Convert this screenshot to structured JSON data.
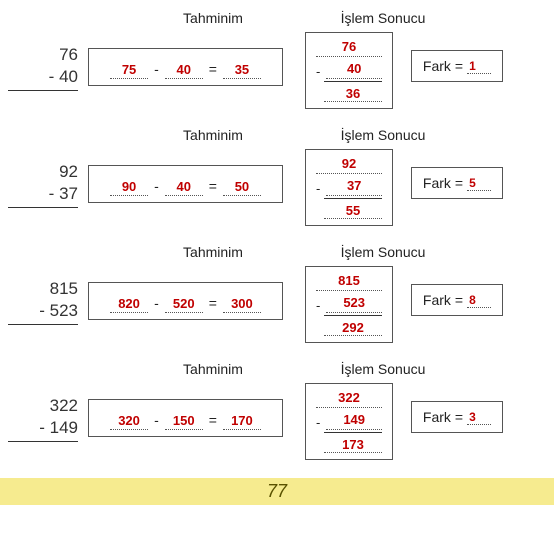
{
  "labels": {
    "tahmin": "Tahminim",
    "islem": "İşlem Sonucu",
    "fark": "Fark",
    "eq": "=",
    "minus": "-"
  },
  "page_number": "77",
  "colors": {
    "answer": "#c00000",
    "footer_bg": "#f6eb8f",
    "footer_text": "#5a5200"
  },
  "rows": [
    {
      "problem": {
        "top": "76",
        "bottom": "40"
      },
      "tahmin": {
        "a": "75",
        "b": "40",
        "c": "35"
      },
      "islem": {
        "top": "76",
        "sub": "40",
        "res": "36"
      },
      "fark": "1"
    },
    {
      "problem": {
        "top": "92",
        "bottom": "37"
      },
      "tahmin": {
        "a": "90",
        "b": "40",
        "c": "50"
      },
      "islem": {
        "top": "92",
        "sub": "37",
        "res": "55"
      },
      "fark": "5"
    },
    {
      "problem": {
        "top": "815",
        "bottom": "523"
      },
      "tahmin": {
        "a": "820",
        "b": "520",
        "c": "300"
      },
      "islem": {
        "top": "815",
        "sub": "523",
        "res": "292"
      },
      "fark": "8"
    },
    {
      "problem": {
        "top": "322",
        "bottom": "149"
      },
      "tahmin": {
        "a": "320",
        "b": "150",
        "c": "170"
      },
      "islem": {
        "top": "322",
        "sub": "149",
        "res": "173"
      },
      "fark": "3"
    }
  ]
}
